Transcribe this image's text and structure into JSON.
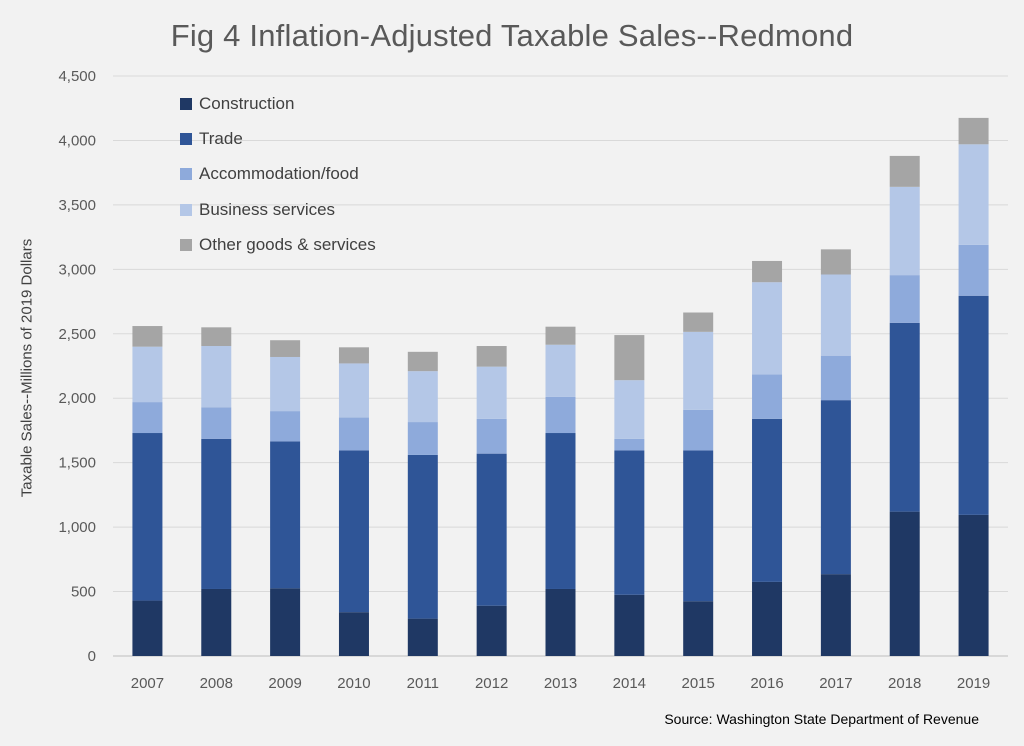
{
  "chart_data": {
    "type": "bar",
    "stacked": true,
    "title": "Fig 4 Inflation-Adjusted Taxable Sales--Redmond",
    "ylabel": "Taxable Sales--Millions of 2019 Dollars",
    "xlabel": "",
    "source": "Source: Washington State Department of Revenue",
    "ylim": [
      0,
      4500
    ],
    "yticks": [
      0,
      500,
      1000,
      1500,
      2000,
      2500,
      3000,
      3500,
      4000,
      4500
    ],
    "ytick_labels": [
      "0",
      "500",
      "1,000",
      "1,500",
      "2,000",
      "2,500",
      "3,000",
      "3,500",
      "4,000",
      "4,500"
    ],
    "grid": true,
    "legend_position": "top-left",
    "categories": [
      "2007",
      "2008",
      "2009",
      "2010",
      "2011",
      "2012",
      "2013",
      "2014",
      "2015",
      "2016",
      "2017",
      "2018",
      "2019"
    ],
    "series": [
      {
        "name": "Construction",
        "color": "#1f3864",
        "values": [
          430,
          520,
          525,
          340,
          290,
          390,
          520,
          475,
          425,
          575,
          635,
          1120,
          1095
        ]
      },
      {
        "name": "Trade",
        "color": "#2f5597",
        "values": [
          1300,
          1165,
          1140,
          1255,
          1270,
          1180,
          1210,
          1120,
          1170,
          1265,
          1350,
          1465,
          1700
        ]
      },
      {
        "name": "Accommodation/food",
        "color": "#8eaadb",
        "values": [
          240,
          245,
          235,
          255,
          255,
          270,
          280,
          90,
          315,
          345,
          345,
          370,
          395
        ]
      },
      {
        "name": "Business services",
        "color": "#b4c7e7",
        "values": [
          430,
          475,
          420,
          420,
          395,
          405,
          405,
          455,
          605,
          715,
          630,
          685,
          780
        ]
      },
      {
        "name": "Other goods & services",
        "color": "#a5a5a5",
        "values": [
          160,
          145,
          130,
          125,
          150,
          160,
          140,
          350,
          150,
          165,
          195,
          240,
          205
        ]
      }
    ]
  }
}
